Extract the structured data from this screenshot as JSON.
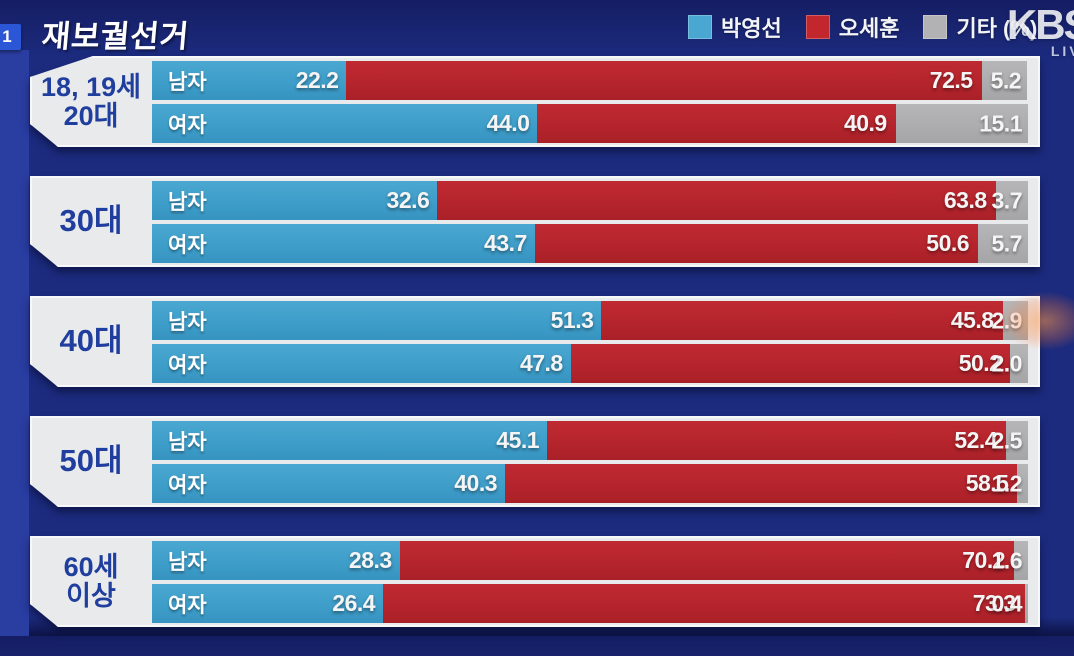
{
  "header": {
    "channel_badge": "1",
    "title": "재보궐선거",
    "logo_text": "KBS",
    "logo_live": "LIVE"
  },
  "legend": {
    "items": [
      {
        "label": "박영선",
        "color": "#4aa7d1"
      },
      {
        "label": "오세훈",
        "color": "#c2272e"
      },
      {
        "label": "기타 (%)",
        "color": "#b2b2b4"
      }
    ]
  },
  "chart_data": {
    "type": "bar",
    "subtype": "horizontal-stacked",
    "unit": "percent",
    "xlim": [
      0,
      100
    ],
    "series": [
      "박영선",
      "오세훈",
      "기타"
    ],
    "series_colors": [
      "#3e9ec9",
      "#b5242c",
      "#adadaf"
    ],
    "groups": [
      {
        "age_lines": [
          "18, 19세",
          "20대"
        ],
        "rows": [
          {
            "gender": "남자",
            "values": [
              22.2,
              72.5,
              5.2
            ],
            "labels": [
              "22.2",
              "72.5",
              "5.2"
            ]
          },
          {
            "gender": "여자",
            "values": [
              44.0,
              40.9,
              15.1
            ],
            "labels": [
              "44.0",
              "40.9",
              "15.1"
            ]
          }
        ]
      },
      {
        "age_lines": [
          "30대"
        ],
        "rows": [
          {
            "gender": "남자",
            "values": [
              32.6,
              63.8,
              3.7
            ],
            "labels": [
              "32.6",
              "63.8",
              "3.7"
            ]
          },
          {
            "gender": "여자",
            "values": [
              43.7,
              50.6,
              5.7
            ],
            "labels": [
              "43.7",
              "50.6",
              "5.7"
            ]
          }
        ]
      },
      {
        "age_lines": [
          "40대"
        ],
        "rows": [
          {
            "gender": "남자",
            "values": [
              51.3,
              45.8,
              2.9
            ],
            "labels": [
              "51.3",
              "45.8",
              "2.9"
            ]
          },
          {
            "gender": "여자",
            "values": [
              47.8,
              50.2,
              2.0
            ],
            "labels": [
              "47.8",
              "50.2",
              "2.0"
            ]
          }
        ]
      },
      {
        "age_lines": [
          "50대"
        ],
        "rows": [
          {
            "gender": "남자",
            "values": [
              45.1,
              52.4,
              2.5
            ],
            "labels": [
              "45.1",
              "52.4",
              "2.5"
            ]
          },
          {
            "gender": "여자",
            "values": [
              40.3,
              58.5,
              1.2
            ],
            "labels": [
              "40.3",
              "58.5",
              "1.2"
            ]
          }
        ]
      },
      {
        "age_lines": [
          "60세",
          "이상"
        ],
        "rows": [
          {
            "gender": "남자",
            "values": [
              28.3,
              70.2,
              1.6
            ],
            "labels": [
              "28.3",
              "70.2",
              "1.6"
            ]
          },
          {
            "gender": "여자",
            "values": [
              26.4,
              73.3,
              0.4
            ],
            "labels": [
              "26.4",
              "73.3",
              "0.4"
            ]
          }
        ]
      }
    ]
  }
}
